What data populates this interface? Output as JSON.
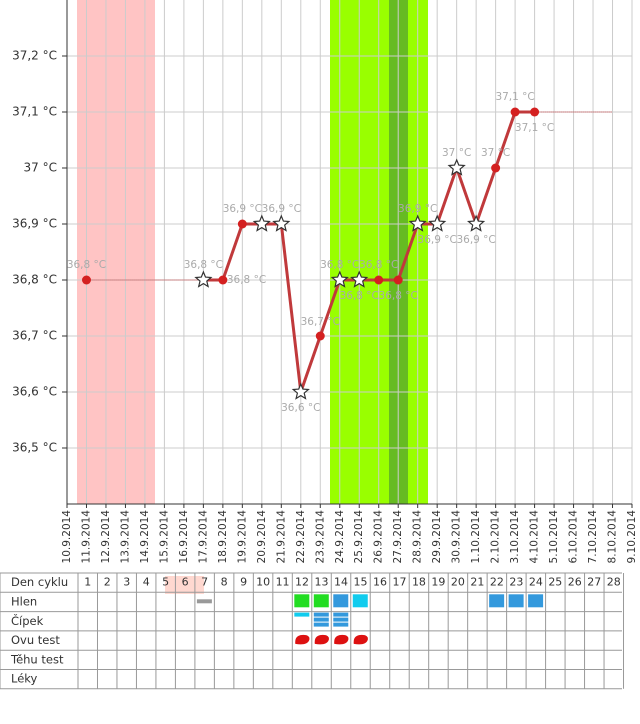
{
  "chart_data": {
    "type": "line",
    "categories": [
      "10.9.2014",
      "11.9.2014",
      "12.9.2014",
      "13.9.2014",
      "14.9.2014",
      "15.9.2014",
      "16.9.2014",
      "17.9.2014",
      "18.9.2014",
      "19.9.2014",
      "20.9.2014",
      "21.9.2014",
      "22.9.2014",
      "23.9.2014",
      "24.9.2014",
      "25.9.2014",
      "26.9.2014",
      "27.9.2014",
      "28.9.2014",
      "29.9.2014",
      "30.9.2014",
      "1.10.2014",
      "2.10.2014",
      "3.10.2014",
      "4.10.2014",
      "5.10.2014",
      "6.10.2014",
      "7.10.2014",
      "8.10.2014",
      "9.10.2014"
    ],
    "values": [
      null,
      36.8,
      null,
      null,
      null,
      null,
      null,
      36.8,
      36.8,
      36.9,
      36.9,
      36.9,
      36.6,
      36.7,
      36.8,
      36.8,
      36.8,
      36.8,
      36.9,
      36.9,
      37.0,
      36.9,
      37.0,
      37.1,
      37.1,
      null,
      null,
      null,
      null,
      null
    ],
    "value_labels": [
      null,
      "36,8 °C",
      null,
      null,
      null,
      null,
      null,
      "36,8 °C",
      "36,8 °C",
      "36,9 °C",
      null,
      "36,9 °C",
      "36,6 °C",
      "36,7 °C",
      "36,8 °C",
      "36,8 °C",
      "36,8 °C",
      "36,8 °C",
      "36,9 °C",
      "36,9 °C",
      "37 °C",
      "36,9 °C",
      "37 °C",
      "37,1 °C",
      "37,1 °C",
      null,
      null,
      null,
      null,
      null
    ],
    "markers": [
      null,
      "dot",
      null,
      null,
      null,
      null,
      null,
      "star",
      "dot",
      "dot",
      "star",
      "star",
      "star",
      "dot",
      "star",
      "star",
      "dot",
      "dot",
      "star",
      "star",
      "star",
      "star",
      "dot",
      "dot",
      "dot",
      null,
      null,
      null,
      null,
      null
    ],
    "color": "#c0393b",
    "ylim": [
      36.4,
      37.3
    ],
    "yticks": [
      {
        "value": 36.5,
        "label": "36,5 °C"
      },
      {
        "value": 36.6,
        "label": "36,6 °C"
      },
      {
        "value": 36.7,
        "label": "36,7 °C"
      },
      {
        "value": 36.8,
        "label": "36,8 °C"
      },
      {
        "value": 36.9,
        "label": "36,9 °C"
      },
      {
        "value": 37.0,
        "label": "37 °C"
      },
      {
        "value": 37.1,
        "label": "37,1 °C"
      },
      {
        "value": 37.2,
        "label": "37,2 °C"
      }
    ],
    "grid": true
  },
  "cycle_table": {
    "header": "Den cyklu",
    "days": [
      1,
      2,
      3,
      4,
      5,
      6,
      7,
      8,
      9,
      10,
      11,
      12,
      13,
      14,
      15,
      16,
      17,
      18,
      19,
      20,
      21,
      22,
      23,
      24,
      25,
      26,
      27,
      28
    ],
    "rows": [
      "Hlen",
      "Čípek",
      "Ovu test",
      "Těhu test",
      "Léky"
    ]
  }
}
